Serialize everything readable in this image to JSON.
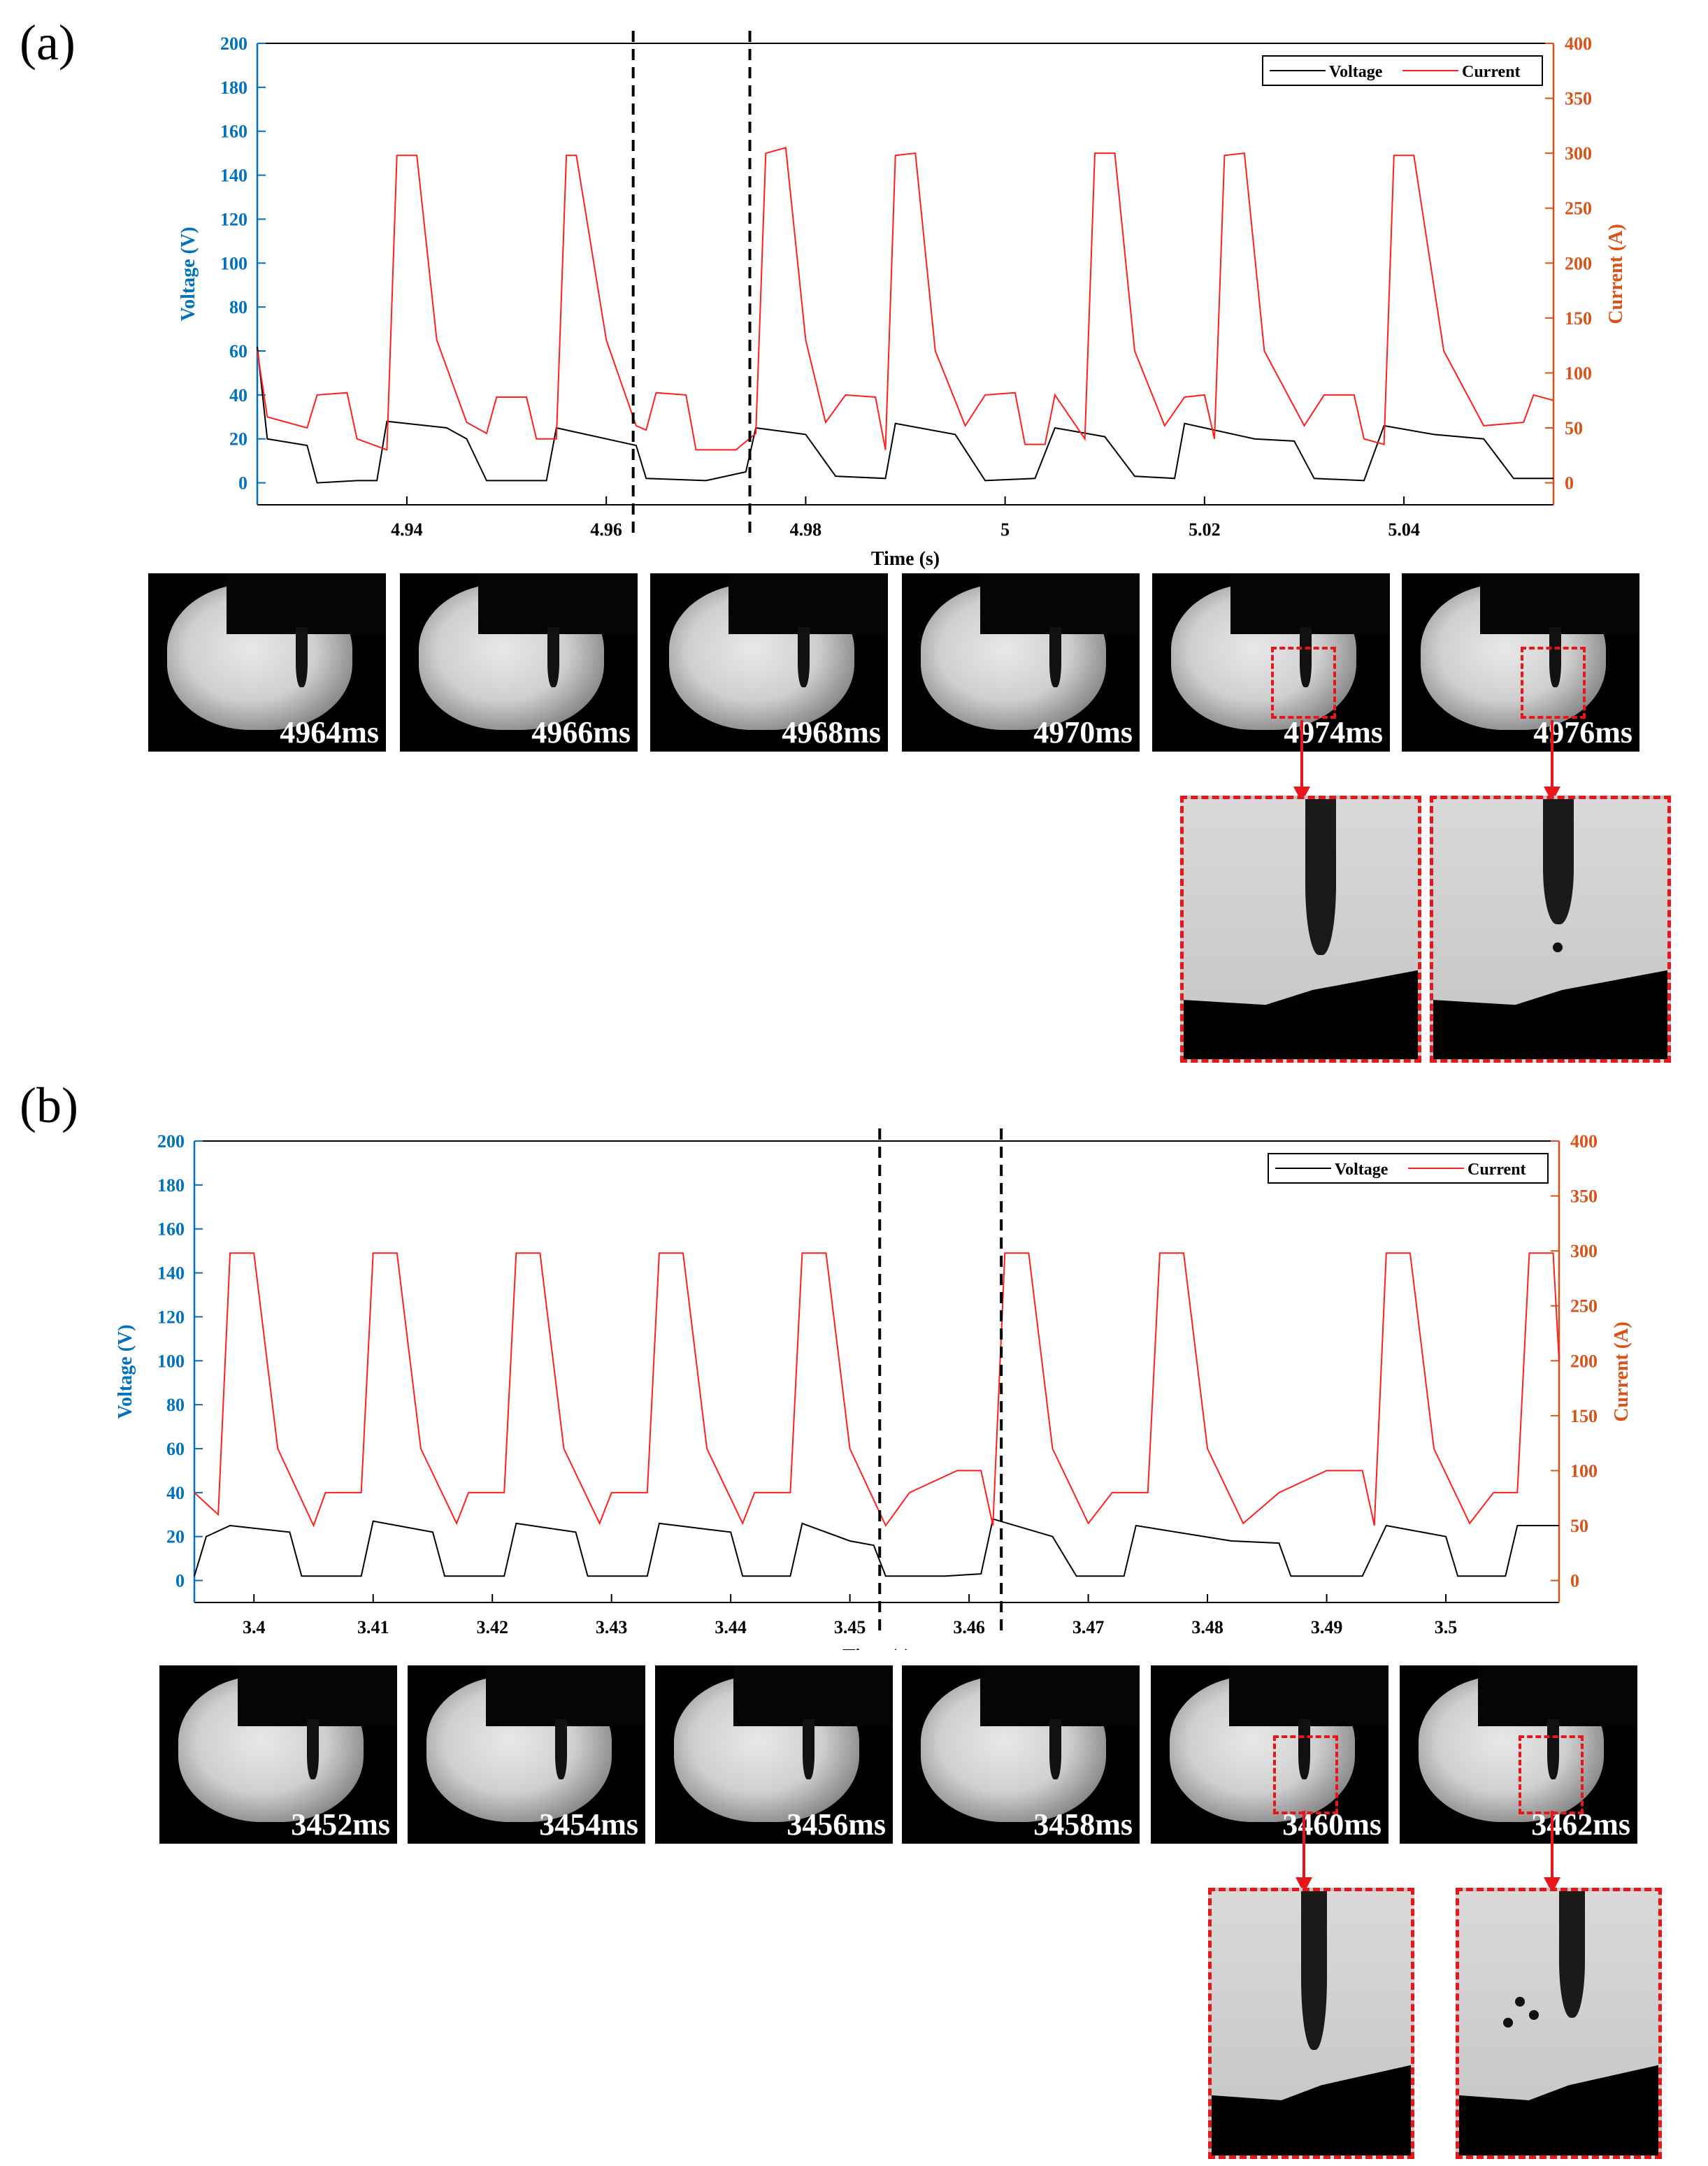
{
  "colors": {
    "voltage_axis": "#0072bd",
    "current_axis": "#d95319",
    "voltage_line": "#000000",
    "current_line": "#ff1f1f",
    "marker": "#e8151b"
  },
  "chart_data": [
    {
      "panel_label": "(a)",
      "type": "line",
      "xlabel": "Time (s)",
      "ylabel": "Voltage (V)",
      "y2label": "Current (A)",
      "xlim": [
        4.925,
        5.055
      ],
      "ylim": [
        -10,
        200
      ],
      "y2lim": [
        -20,
        400
      ],
      "xticks": [
        4.94,
        4.96,
        4.98,
        5,
        5.02,
        5.04
      ],
      "xticklabels": [
        "4.94",
        "4.96",
        "4.98",
        "5",
        "5.02",
        "5.04"
      ],
      "yticks": [
        0,
        20,
        40,
        60,
        80,
        100,
        120,
        140,
        160,
        180,
        200
      ],
      "yticklabels": [
        "0",
        "20",
        "40",
        "60",
        "80",
        "100",
        "120",
        "140",
        "160",
        "180",
        "200"
      ],
      "y2ticks": [
        0,
        50,
        100,
        150,
        200,
        250,
        300,
        350,
        400
      ],
      "y2ticklabels": [
        "0",
        "50",
        "100",
        "150",
        "200",
        "250",
        "300",
        "350",
        "400"
      ],
      "legend": [
        "Voltage",
        "Current"
      ],
      "legend_position": "top-right",
      "dashed_markers_x": [
        4.9627,
        4.9744
      ],
      "series": [
        {
          "name": "Voltage",
          "axis": "left",
          "points": [
            [
              4.925,
              62
            ],
            [
              4.926,
              20
            ],
            [
              4.93,
              17
            ],
            [
              4.931,
              0
            ],
            [
              4.935,
              1
            ],
            [
              4.937,
              1
            ],
            [
              4.938,
              28
            ],
            [
              4.944,
              25
            ],
            [
              4.946,
              20
            ],
            [
              4.948,
              1
            ],
            [
              4.954,
              1
            ],
            [
              4.955,
              25
            ],
            [
              4.96,
              20
            ],
            [
              4.963,
              17
            ],
            [
              4.964,
              2
            ],
            [
              4.97,
              1
            ],
            [
              4.974,
              5
            ],
            [
              4.975,
              25
            ],
            [
              4.98,
              22
            ],
            [
              4.983,
              3
            ],
            [
              4.988,
              2
            ],
            [
              4.989,
              27
            ],
            [
              4.995,
              22
            ],
            [
              4.998,
              1
            ],
            [
              5.003,
              2
            ],
            [
              5.005,
              25
            ],
            [
              5.01,
              21
            ],
            [
              5.013,
              3
            ],
            [
              5.017,
              2
            ],
            [
              5.018,
              27
            ],
            [
              5.025,
              20
            ],
            [
              5.029,
              19
            ],
            [
              5.031,
              2
            ],
            [
              5.036,
              1
            ],
            [
              5.038,
              26
            ],
            [
              5.043,
              22
            ],
            [
              5.048,
              20
            ],
            [
              5.051,
              2
            ],
            [
              5.055,
              2
            ]
          ]
        },
        {
          "name": "Current",
          "axis": "right",
          "points": [
            [
              4.925,
              120
            ],
            [
              4.926,
              60
            ],
            [
              4.93,
              50
            ],
            [
              4.931,
              80
            ],
            [
              4.934,
              82
            ],
            [
              4.935,
              40
            ],
            [
              4.938,
              30
            ],
            [
              4.939,
              298
            ],
            [
              4.941,
              298
            ],
            [
              4.943,
              130
            ],
            [
              4.946,
              55
            ],
            [
              4.948,
              45
            ],
            [
              4.949,
              78
            ],
            [
              4.952,
              78
            ],
            [
              4.953,
              40
            ],
            [
              4.955,
              40
            ],
            [
              4.956,
              298
            ],
            [
              4.957,
              298
            ],
            [
              4.96,
              130
            ],
            [
              4.963,
              52
            ],
            [
              4.964,
              48
            ],
            [
              4.965,
              82
            ],
            [
              4.968,
              80
            ],
            [
              4.969,
              30
            ],
            [
              4.973,
              30
            ],
            [
              4.975,
              45
            ],
            [
              4.976,
              300
            ],
            [
              4.978,
              305
            ],
            [
              4.98,
              130
            ],
            [
              4.982,
              55
            ],
            [
              4.984,
              80
            ],
            [
              4.987,
              78
            ],
            [
              4.988,
              30
            ],
            [
              4.989,
              298
            ],
            [
              4.991,
              300
            ],
            [
              4.993,
              120
            ],
            [
              4.996,
              52
            ],
            [
              4.998,
              80
            ],
            [
              5.001,
              82
            ],
            [
              5.002,
              35
            ],
            [
              5.004,
              35
            ],
            [
              5.005,
              80
            ],
            [
              5.008,
              40
            ],
            [
              5.009,
              300
            ],
            [
              5.011,
              300
            ],
            [
              5.013,
              120
            ],
            [
              5.016,
              52
            ],
            [
              5.018,
              78
            ],
            [
              5.02,
              80
            ],
            [
              5.021,
              40
            ],
            [
              5.022,
              298
            ],
            [
              5.024,
              300
            ],
            [
              5.026,
              120
            ],
            [
              5.03,
              52
            ],
            [
              5.032,
              80
            ],
            [
              5.035,
              80
            ],
            [
              5.036,
              40
            ],
            [
              5.038,
              35
            ],
            [
              5.039,
              298
            ],
            [
              5.041,
              298
            ],
            [
              5.044,
              120
            ],
            [
              5.048,
              52
            ],
            [
              5.052,
              55
            ],
            [
              5.053,
              80
            ],
            [
              5.055,
              75
            ]
          ]
        }
      ],
      "frames": [
        "4964ms",
        "4966ms",
        "4968ms",
        "4970ms",
        "4974ms",
        "4976ms"
      ]
    },
    {
      "panel_label": "(b)",
      "type": "line",
      "xlabel": "Time (s)",
      "ylabel": "Voltage (V)",
      "y2label": "Current (A)",
      "xlim": [
        3.395,
        3.5095
      ],
      "ylim": [
        -10,
        200
      ],
      "y2lim": [
        -20,
        400
      ],
      "xticks": [
        3.4,
        3.41,
        3.42,
        3.43,
        3.44,
        3.45,
        3.46,
        3.47,
        3.48,
        3.49,
        3.5
      ],
      "xticklabels": [
        "3.4",
        "3.41",
        "3.42",
        "3.43",
        "3.44",
        "3.45",
        "3.46",
        "3.47",
        "3.48",
        "3.49",
        "3.5"
      ],
      "yticks": [
        0,
        20,
        40,
        60,
        80,
        100,
        120,
        140,
        160,
        180,
        200
      ],
      "yticklabels": [
        "0",
        "20",
        "40",
        "60",
        "80",
        "100",
        "120",
        "140",
        "160",
        "180",
        "200"
      ],
      "y2ticks": [
        0,
        50,
        100,
        150,
        200,
        250,
        300,
        350,
        400
      ],
      "y2ticklabels": [
        "0",
        "50",
        "100",
        "150",
        "200",
        "250",
        "300",
        "350",
        "400"
      ],
      "legend": [
        "Voltage",
        "Current"
      ],
      "legend_position": "top-right",
      "dashed_markers_x": [
        3.4525,
        3.4627
      ],
      "series": [
        {
          "name": "Voltage",
          "axis": "left",
          "points": [
            [
              3.395,
              2
            ],
            [
              3.396,
              20
            ],
            [
              3.398,
              25
            ],
            [
              3.403,
              22
            ],
            [
              3.404,
              2
            ],
            [
              3.409,
              2
            ],
            [
              3.41,
              27
            ],
            [
              3.415,
              22
            ],
            [
              3.416,
              2
            ],
            [
              3.421,
              2
            ],
            [
              3.422,
              26
            ],
            [
              3.427,
              22
            ],
            [
              3.428,
              2
            ],
            [
              3.433,
              2
            ],
            [
              3.434,
              26
            ],
            [
              3.44,
              22
            ],
            [
              3.441,
              2
            ],
            [
              3.445,
              2
            ],
            [
              3.446,
              26
            ],
            [
              3.45,
              18
            ],
            [
              3.452,
              16
            ],
            [
              3.453,
              2
            ],
            [
              3.458,
              2
            ],
            [
              3.461,
              3
            ],
            [
              3.462,
              28
            ],
            [
              3.467,
              20
            ],
            [
              3.469,
              2
            ],
            [
              3.473,
              2
            ],
            [
              3.474,
              25
            ],
            [
              3.482,
              18
            ],
            [
              3.486,
              17
            ],
            [
              3.487,
              2
            ],
            [
              3.493,
              2
            ],
            [
              3.495,
              25
            ],
            [
              3.5,
              20
            ],
            [
              3.501,
              2
            ],
            [
              3.505,
              2
            ],
            [
              3.506,
              25
            ],
            [
              3.5095,
              25
            ]
          ]
        },
        {
          "name": "Current",
          "axis": "right",
          "points": [
            [
              3.395,
              80
            ],
            [
              3.397,
              60
            ],
            [
              3.398,
              298
            ],
            [
              3.4,
              298
            ],
            [
              3.402,
              120
            ],
            [
              3.405,
              50
            ],
            [
              3.406,
              80
            ],
            [
              3.409,
              80
            ],
            [
              3.41,
              298
            ],
            [
              3.412,
              298
            ],
            [
              3.414,
              120
            ],
            [
              3.417,
              52
            ],
            [
              3.418,
              80
            ],
            [
              3.421,
              80
            ],
            [
              3.422,
              298
            ],
            [
              3.424,
              298
            ],
            [
              3.426,
              120
            ],
            [
              3.429,
              52
            ],
            [
              3.43,
              80
            ],
            [
              3.433,
              80
            ],
            [
              3.434,
              298
            ],
            [
              3.436,
              298
            ],
            [
              3.438,
              120
            ],
            [
              3.441,
              52
            ],
            [
              3.442,
              80
            ],
            [
              3.445,
              80
            ],
            [
              3.446,
              298
            ],
            [
              3.448,
              298
            ],
            [
              3.45,
              120
            ],
            [
              3.453,
              50
            ],
            [
              3.455,
              80
            ],
            [
              3.459,
              100
            ],
            [
              3.461,
              100
            ],
            [
              3.462,
              50
            ],
            [
              3.463,
              298
            ],
            [
              3.465,
              298
            ],
            [
              3.467,
              120
            ],
            [
              3.47,
              52
            ],
            [
              3.472,
              80
            ],
            [
              3.475,
              80
            ],
            [
              3.476,
              298
            ],
            [
              3.478,
              298
            ],
            [
              3.48,
              120
            ],
            [
              3.483,
              52
            ],
            [
              3.486,
              80
            ],
            [
              3.49,
              100
            ],
            [
              3.493,
              100
            ],
            [
              3.494,
              50
            ],
            [
              3.495,
              298
            ],
            [
              3.497,
              298
            ],
            [
              3.499,
              120
            ],
            [
              3.502,
              52
            ],
            [
              3.504,
              80
            ],
            [
              3.506,
              80
            ],
            [
              3.507,
              298
            ],
            [
              3.509,
              298
            ],
            [
              3.5095,
              200
            ]
          ]
        }
      ],
      "frames": [
        "3452ms",
        "3454ms",
        "3456ms",
        "3458ms",
        "3460ms",
        "3462ms"
      ]
    }
  ]
}
